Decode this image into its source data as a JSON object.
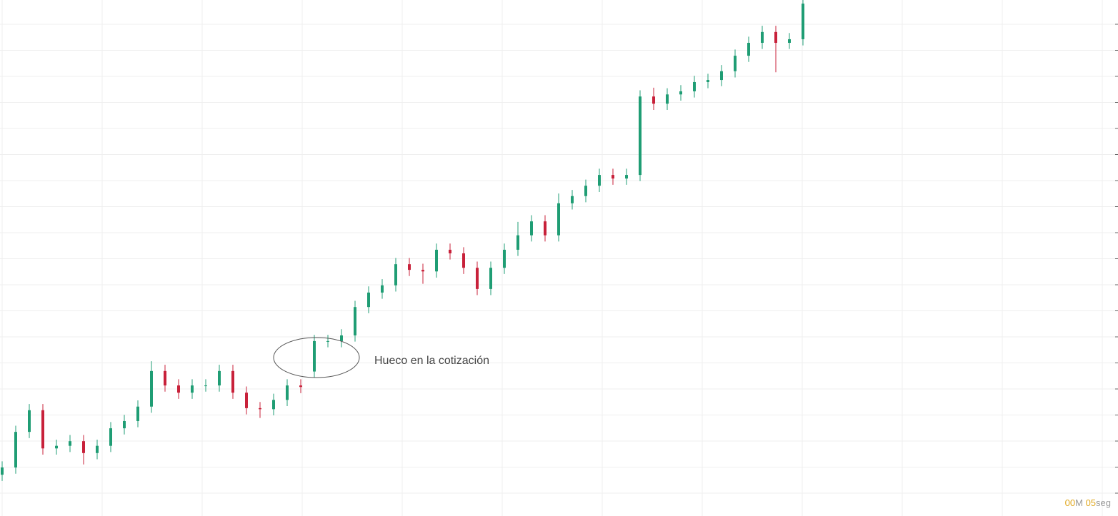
{
  "chart_data": {
    "type": "candlestick",
    "annotation": "Hueco en la cotización",
    "ylim": [
      0,
      100
    ],
    "up_color": "#1f9d74",
    "down_color": "#c8213a",
    "grid": true,
    "open": [
      8.0,
      9.4,
      16.3,
      20.5,
      13.1,
      13.6,
      14.5,
      12.2,
      13.6,
      17.0,
      18.4,
      21.2,
      28.1,
      25.3,
      23.9,
      25.3,
      25.3,
      28.1,
      23.9,
      20.9,
      20.7,
      22.5,
      25.3,
      28.0,
      33.9,
      33.9,
      35.0,
      40.5,
      43.3,
      44.7,
      48.8,
      47.7,
      47.4,
      51.6,
      50.9,
      48.1,
      44.0,
      48.1,
      51.6,
      54.4,
      57.1,
      54.4,
      60.6,
      62.0,
      64.0,
      66.1,
      65.4,
      66.1,
      81.3,
      79.9,
      81.7,
      82.3,
      84.1,
      84.5,
      86.2,
      89.2,
      91.7,
      93.8,
      91.7,
      92.4
    ],
    "high": [
      10.6,
      17.5,
      21.7,
      21.7,
      14.8,
      15.7,
      15.7,
      14.8,
      18.2,
      19.6,
      22.4,
      30.0,
      29.3,
      26.5,
      26.5,
      26.5,
      29.3,
      29.3,
      25.1,
      22.1,
      23.7,
      26.5,
      26.5,
      35.1,
      35.1,
      36.2,
      41.7,
      44.5,
      45.9,
      50.0,
      50.0,
      48.9,
      52.8,
      52.8,
      52.1,
      49.3,
      49.3,
      52.8,
      57.0,
      58.3,
      58.3,
      62.5,
      63.2,
      65.2,
      67.3,
      67.3,
      67.3,
      82.5,
      83.0,
      82.9,
      83.5,
      85.3,
      85.7,
      87.4,
      90.4,
      92.9,
      95.0,
      95.0,
      93.6,
      100
    ],
    "low": [
      6.8,
      8.2,
      15.1,
      11.9,
      11.9,
      12.4,
      10.0,
      11.0,
      12.4,
      15.8,
      17.2,
      20.0,
      24.1,
      22.7,
      22.7,
      24.1,
      24.1,
      22.7,
      19.7,
      19.0,
      19.5,
      21.3,
      23.8,
      26.8,
      32.7,
      32.7,
      33.8,
      39.3,
      42.1,
      43.5,
      46.5,
      45.0,
      46.2,
      49.7,
      46.9,
      42.8,
      42.8,
      46.9,
      50.4,
      53.2,
      53.2,
      53.2,
      59.4,
      60.8,
      62.8,
      64.2,
      64.2,
      64.9,
      78.7,
      78.7,
      80.5,
      81.1,
      82.9,
      83.3,
      85.0,
      88.0,
      90.5,
      86.0,
      90.5,
      91.2
    ],
    "close": [
      9.4,
      16.3,
      20.5,
      13.1,
      13.6,
      14.5,
      12.2,
      13.6,
      17.0,
      18.4,
      21.2,
      28.1,
      25.3,
      23.9,
      25.3,
      25.3,
      28.1,
      23.9,
      20.9,
      20.7,
      22.5,
      25.3,
      25.0,
      33.9,
      33.9,
      35.0,
      40.5,
      43.3,
      44.7,
      48.8,
      47.7,
      47.4,
      51.6,
      50.9,
      48.1,
      44.0,
      48.1,
      51.6,
      54.4,
      57.1,
      54.4,
      60.6,
      62.0,
      64.0,
      66.1,
      65.4,
      66.1,
      81.3,
      79.9,
      81.7,
      82.3,
      84.1,
      84.5,
      86.2,
      89.2,
      91.7,
      93.8,
      91.7,
      92.4,
      99.3
    ]
  },
  "timer": {
    "minutes": "00",
    "minutes_unit": "M",
    "seconds": "05",
    "seconds_unit": "seg"
  }
}
